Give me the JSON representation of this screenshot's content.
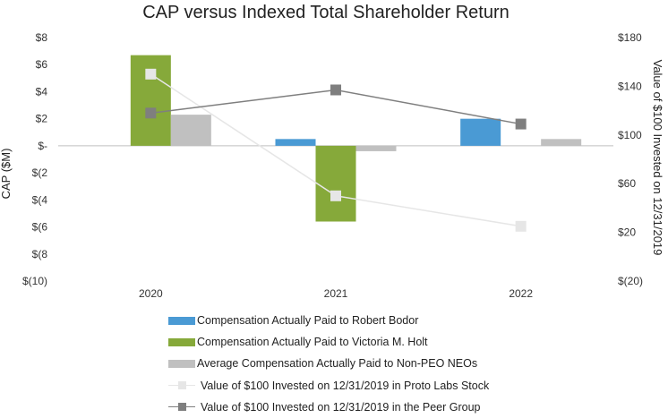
{
  "chart_data": {
    "type": "bar",
    "title": "CAP versus Indexed Total Shareholder Return",
    "ylabel": "CAP ($M)",
    "y2label": "Value of $100 Invested on 12/31/2019",
    "categories": [
      "2020",
      "2021",
      "2022"
    ],
    "ylim": [
      -10,
      8
    ],
    "y2lim": [
      -20,
      180
    ],
    "yticks": [
      "$8",
      "$6",
      "$4",
      "$2",
      "$-",
      "$(2",
      "$(4",
      "$(6",
      "$(8",
      "$(10)"
    ],
    "y2ticks": [
      "$180",
      "$140",
      "$100",
      "$60",
      "$20",
      "$(20)"
    ],
    "grid": false,
    "legend_position": "bottom",
    "series": [
      {
        "name": "Compensation Actually Paid to Robert Bodor",
        "type": "bar",
        "axis": "left",
        "color": "#4a9ad4",
        "values": [
          null,
          0.5,
          2.0
        ]
      },
      {
        "name": "Compensation Actually Paid to Victoria M. Holt",
        "type": "bar",
        "axis": "left",
        "color": "#86a93a",
        "values": [
          6.7,
          -5.6,
          null
        ]
      },
      {
        "name": "Average Compensation Actually Paid to Non-PEO NEOs",
        "type": "bar",
        "axis": "left",
        "color": "#c0c0c0",
        "values": [
          2.3,
          -0.4,
          0.5
        ]
      },
      {
        "name": "Value of $100 Invested on 12/31/2019 in Proto Labs Stock",
        "type": "line",
        "axis": "right",
        "color": "#e6e6e6",
        "values": [
          150,
          50,
          25
        ]
      },
      {
        "name": "Value of $100 Invested on 12/31/2019 in the Peer Group",
        "type": "line",
        "axis": "right",
        "color": "#7f7f7f",
        "values": [
          118,
          137,
          109
        ]
      }
    ]
  }
}
